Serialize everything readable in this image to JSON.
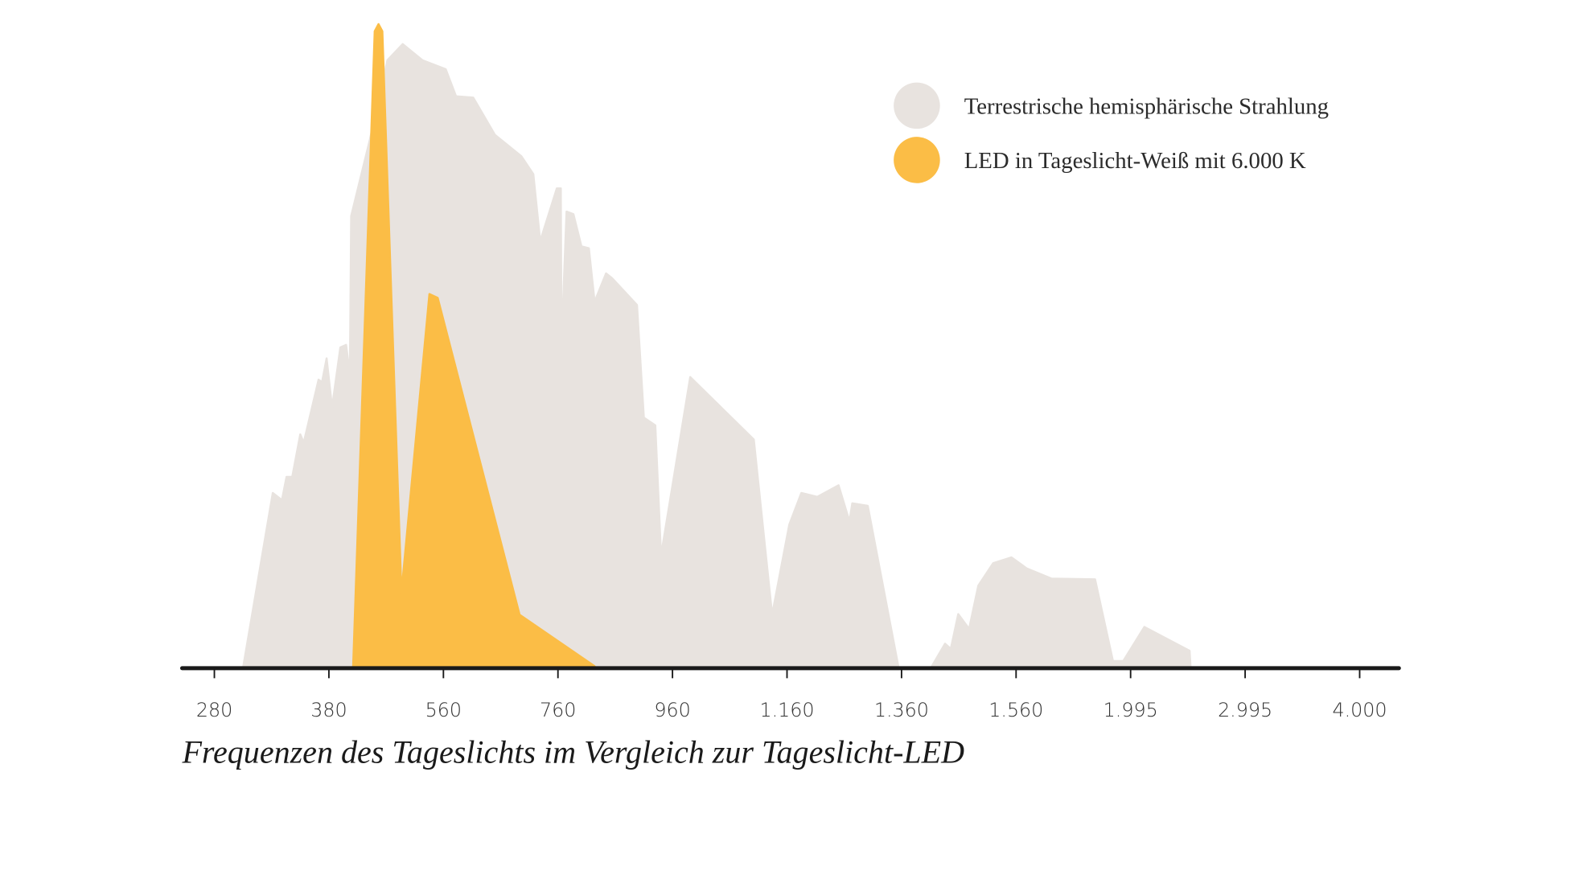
{
  "chart_data": {
    "type": "area",
    "xlabel": "Frequenzen des Tageslichts im Vergleich zur Tageslicht-LED",
    "xticks": [
      280,
      380,
      560,
      760,
      960,
      {
        "value": 1160,
        "label": "1.160"
      },
      {
        "value": 1360,
        "label": "1.360"
      },
      {
        "value": 1560,
        "label": "1.560"
      },
      {
        "value": 1995,
        "label": "1.995"
      },
      {
        "value": 2995,
        "label": "2.995"
      },
      {
        "value": 4000,
        "label": "4.000"
      }
    ],
    "xlim": [
      250,
      4110
    ],
    "ylim": [
      0,
      100
    ],
    "legend": "top-right",
    "series": [
      {
        "name": "Terrestrische hemisphärische Strahlung",
        "color": "#e8e3df",
        "x": [
          305,
          331,
          339,
          343,
          348,
          355,
          358,
          371,
          374,
          378,
          385,
          398,
          407,
          413,
          415,
          444,
          472,
          496,
          527,
          564,
          582,
          612,
          650,
          696,
          717,
          729,
          758,
          765,
          766,
          775,
          787,
          801,
          814,
          824,
          844,
          854,
          898,
          910,
          930,
          940,
          991,
          1102,
          1134,
          1164,
          1185,
          1213,
          1250,
          1269,
          1274,
          1301,
          1355,
          1411,
          1436,
          1446,
          1459,
          1478,
          1494,
          1520,
          1552,
          1600,
          1695,
          1860,
          1928,
          1967,
          2115,
          2510,
          2519
        ],
        "values": [
          0,
          27.2,
          26.1,
          29.7,
          29.7,
          36.3,
          35,
          44.8,
          44.4,
          48.1,
          40.5,
          49.8,
          50.2,
          45.6,
          70.2,
          81.9,
          94.4,
          96.9,
          94.4,
          93,
          88.8,
          88.6,
          82.8,
          79.5,
          76.7,
          66.3,
          74.5,
          74.5,
          49.8,
          70.9,
          70.5,
          65.5,
          65.2,
          56.9,
          61.3,
          60.6,
          56.4,
          38.9,
          37.7,
          17.5,
          45.2,
          35.5,
          8.3,
          22.3,
          27.2,
          26.6,
          28.4,
          22.8,
          25.6,
          25.2,
          0,
          0,
          3.8,
          3,
          8.4,
          6.1,
          12.8,
          16.3,
          17.2,
          15.5,
          13.9,
          13.8,
          1.1,
          1.1,
          6.4,
          2.7,
          0
        ]
      },
      {
        "name": "LED in Tageslicht-Weiß mit 6.000 K",
        "color": "#fbbd46",
        "x": [
          418,
          452,
          458,
          464,
          494,
          538,
          551,
          693,
          824
        ],
        "values": [
          0,
          98.9,
          100,
          98.9,
          11.7,
          58.1,
          57.5,
          8.3,
          0.3
        ]
      }
    ]
  }
}
